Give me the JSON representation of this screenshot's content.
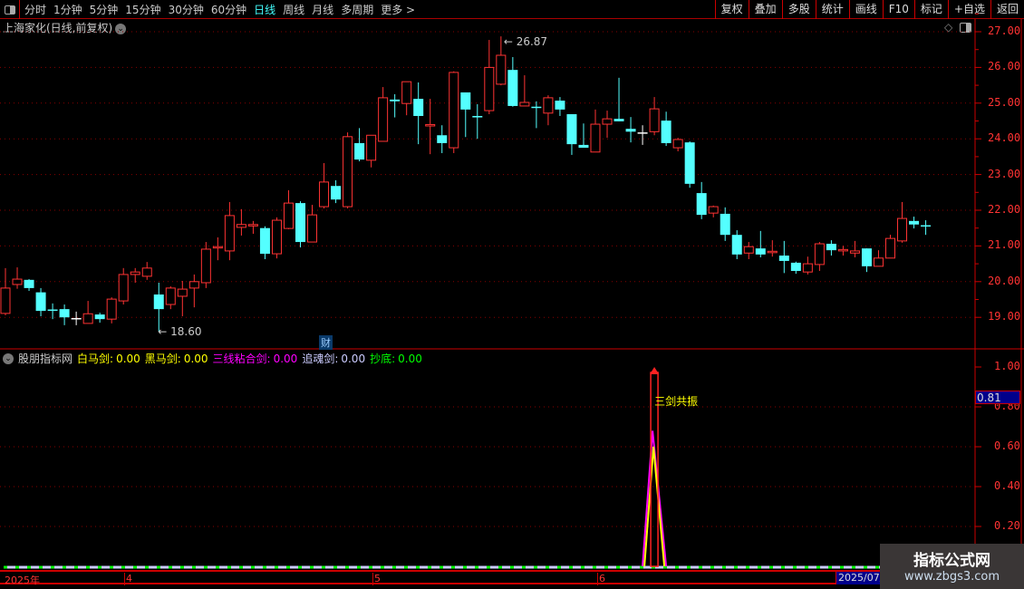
{
  "toolbar": {
    "periods": [
      "分时",
      "1分钟",
      "5分钟",
      "15分钟",
      "30分钟",
      "60分钟",
      "日线",
      "周线",
      "月线",
      "多周期",
      "更多 >"
    ],
    "active_period": "日线",
    "buttons": [
      "复权",
      "叠加",
      "多股",
      "统计",
      "画线",
      "F10",
      "标记",
      "+自选",
      "返回"
    ]
  },
  "stock": {
    "title": "上海家化(日线,前复权)"
  },
  "price_axis": {
    "labels": [
      "27.00",
      "26.00",
      "25.00",
      "24.00",
      "23.00",
      "22.00",
      "21.00",
      "20.00",
      "19.00"
    ]
  },
  "price_marks": {
    "high": "26.87",
    "low": "18.60"
  },
  "finance_badge": "财",
  "indicator": {
    "name": "股朋指标网",
    "items": [
      {
        "label": "白马剑:",
        "value": "0.00",
        "color": "#ffff00"
      },
      {
        "label": "黑马剑:",
        "value": "0.00",
        "color": "#ffff00"
      },
      {
        "label": "三线粘合剑:",
        "value": "0.00",
        "color": "#ff00ff"
      },
      {
        "label": "追魂剑:",
        "value": "0.00",
        "color": "#ccccff"
      },
      {
        "label": "抄底:",
        "value": "0.00",
        "color": "#00ff00"
      }
    ],
    "axis": [
      "1.00",
      "0.80",
      "0.60",
      "0.40",
      "0.20"
    ],
    "current": "0.81",
    "signal_text": "三剑共振"
  },
  "date_axis": {
    "labels": [
      "2025年",
      "4",
      "5",
      "6"
    ],
    "current": "2025/07/"
  },
  "watermark": {
    "line1": "指标公式网",
    "line2": "www.zbgs3.com"
  },
  "colors": {
    "up": "#ff3333",
    "down": "#54ffff",
    "flat": "#ffffff",
    "axis": "#cc0000"
  },
  "chart_data": {
    "type": "candlestick",
    "ylim": [
      18.5,
      27.3
    ],
    "ohlc": [
      [
        19.11,
        20.38,
        19.06,
        19.82
      ],
      [
        19.92,
        20.4,
        19.8,
        20.07
      ],
      [
        20.05,
        20.07,
        19.74,
        19.82
      ],
      [
        19.7,
        19.82,
        19.03,
        19.18
      ],
      [
        19.22,
        19.39,
        18.95,
        19.2
      ],
      [
        19.23,
        19.36,
        18.78,
        19.0
      ],
      [
        18.98,
        19.16,
        18.78,
        18.98
      ],
      [
        18.83,
        19.46,
        18.83,
        19.1
      ],
      [
        19.08,
        19.13,
        18.85,
        18.95
      ],
      [
        18.95,
        19.56,
        18.83,
        19.51
      ],
      [
        19.46,
        20.38,
        19.36,
        20.2
      ],
      [
        20.2,
        20.38,
        19.97,
        20.27
      ],
      [
        20.15,
        20.55,
        20.05,
        20.38
      ],
      [
        19.64,
        19.97,
        18.6,
        19.23
      ],
      [
        19.36,
        19.87,
        19.23,
        19.82
      ],
      [
        19.59,
        20.02,
        19.03,
        19.79
      ],
      [
        19.82,
        20.2,
        19.28,
        20.0
      ],
      [
        19.97,
        21.11,
        19.82,
        20.91
      ],
      [
        20.97,
        21.24,
        20.6,
        20.98
      ],
      [
        20.86,
        22.23,
        20.6,
        21.85
      ],
      [
        21.52,
        22.03,
        21.29,
        21.6
      ],
      [
        21.56,
        21.7,
        21.34,
        21.6
      ],
      [
        21.5,
        21.55,
        20.63,
        20.78
      ],
      [
        20.78,
        21.8,
        20.65,
        21.72
      ],
      [
        21.49,
        22.56,
        21.47,
        22.2
      ],
      [
        22.2,
        22.25,
        20.96,
        21.11
      ],
      [
        21.11,
        22.15,
        21.11,
        21.87
      ],
      [
        22.1,
        23.32,
        22.05,
        22.79
      ],
      [
        22.68,
        22.84,
        22.2,
        22.3
      ],
      [
        22.1,
        24.18,
        22.05,
        24.06
      ],
      [
        23.88,
        24.3,
        23.37,
        23.42
      ],
      [
        23.4,
        24.1,
        23.2,
        24.1
      ],
      [
        23.93,
        25.45,
        23.93,
        25.15
      ],
      [
        25.1,
        25.25,
        24.6,
        25.05
      ],
      [
        24.99,
        25.6,
        24.66,
        25.6
      ],
      [
        25.12,
        25.58,
        23.85,
        24.64
      ],
      [
        24.36,
        25.12,
        23.57,
        24.4
      ],
      [
        24.1,
        24.38,
        23.6,
        23.88
      ],
      [
        23.75,
        25.89,
        23.6,
        25.86
      ],
      [
        25.3,
        25.3,
        24.05,
        24.82
      ],
      [
        24.64,
        24.97,
        24.0,
        24.6
      ],
      [
        24.79,
        26.77,
        24.69,
        26.0
      ],
      [
        25.53,
        26.87,
        25.5,
        26.34
      ],
      [
        25.93,
        26.29,
        24.9,
        24.92
      ],
      [
        24.92,
        25.78,
        24.92,
        25.02
      ],
      [
        24.9,
        25.05,
        24.3,
        24.87
      ],
      [
        24.72,
        25.22,
        24.38,
        25.15
      ],
      [
        25.07,
        25.17,
        24.64,
        24.82
      ],
      [
        24.69,
        24.69,
        23.55,
        23.85
      ],
      [
        23.83,
        24.43,
        23.75,
        23.75
      ],
      [
        23.63,
        24.82,
        23.63,
        24.41
      ],
      [
        24.41,
        24.79,
        24.03,
        24.56
      ],
      [
        24.56,
        25.71,
        24.49,
        24.49
      ],
      [
        24.28,
        24.61,
        23.9,
        24.2
      ],
      [
        24.18,
        24.38,
        23.83,
        24.18
      ],
      [
        24.2,
        25.17,
        24.1,
        24.84
      ],
      [
        24.51,
        24.76,
        23.8,
        23.88
      ],
      [
        23.75,
        24.03,
        23.65,
        23.98
      ],
      [
        23.9,
        23.93,
        22.63,
        22.74
      ],
      [
        22.48,
        22.79,
        21.75,
        21.87
      ],
      [
        21.92,
        22.13,
        21.8,
        22.1
      ],
      [
        21.9,
        22.08,
        21.14,
        21.31
      ],
      [
        21.31,
        21.44,
        20.63,
        20.76
      ],
      [
        20.8,
        21.11,
        20.63,
        20.98
      ],
      [
        20.93,
        21.42,
        20.68,
        20.76
      ],
      [
        20.82,
        21.16,
        20.7,
        20.85
      ],
      [
        20.73,
        21.14,
        20.24,
        20.58
      ],
      [
        20.53,
        20.56,
        20.22,
        20.3
      ],
      [
        20.27,
        20.7,
        20.2,
        20.5
      ],
      [
        20.48,
        21.11,
        20.3,
        21.06
      ],
      [
        21.06,
        21.16,
        20.73,
        20.88
      ],
      [
        20.86,
        21.0,
        20.73,
        20.9
      ],
      [
        20.8,
        21.14,
        20.68,
        20.86
      ],
      [
        20.93,
        20.93,
        20.27,
        20.43
      ],
      [
        20.43,
        20.88,
        20.43,
        20.66
      ],
      [
        20.66,
        21.31,
        20.66,
        21.21
      ],
      [
        21.14,
        22.23,
        21.09,
        21.77
      ],
      [
        21.7,
        21.82,
        21.49,
        21.6
      ],
      [
        21.58,
        21.72,
        21.31,
        21.56
      ]
    ],
    "indicator_ylim": [
      0,
      1.05
    ],
    "indicator_signal": {
      "index": 55,
      "resonance": 1.0,
      "magenta_peak": 0.68,
      "yellow_peak": 0.6
    }
  }
}
